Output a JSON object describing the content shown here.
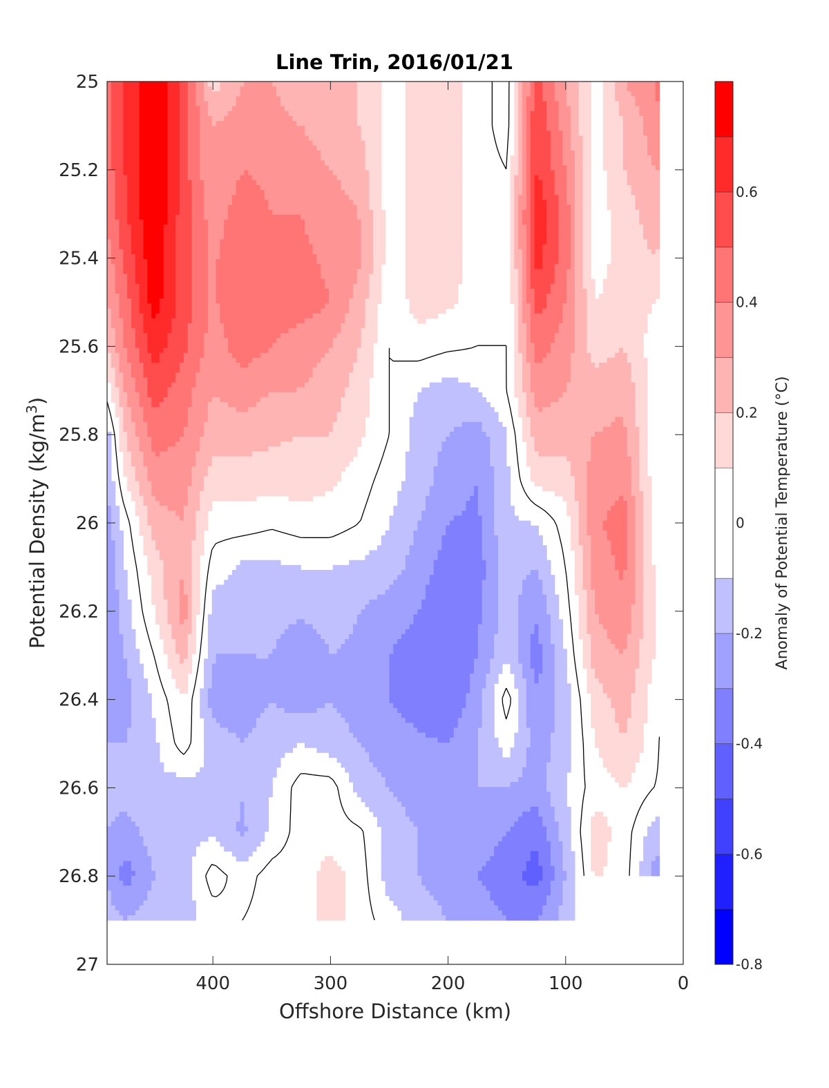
{
  "chart_data": {
    "type": "heatmap",
    "title": "Line Trin, 2016/01/21",
    "xlabel": "Offshore Distance (km)",
    "ylabel_prefix": "Potential Density (kg/m",
    "ylabel_sup": "3",
    "ylabel_suffix": ")",
    "xlim": [
      490,
      0
    ],
    "ylim": [
      25,
      27
    ],
    "x_reversed": true,
    "y_reversed": true,
    "xticks": [
      400,
      300,
      200,
      100,
      0
    ],
    "yticks": [
      25,
      25.2,
      25.4,
      25.6,
      25.8,
      26,
      26.2,
      26.4,
      26.6,
      26.8,
      27
    ],
    "ytick_labels": [
      "25",
      "25.2",
      "25.4",
      "25.6",
      "25.8",
      "26",
      "26.2",
      "26.4",
      "26.6",
      "26.8",
      "27"
    ],
    "colorbar": {
      "label": "Anomaly of Potential Temperature (°C)",
      "min": -0.8,
      "max": 0.8,
      "ticks": [
        -0.8,
        -0.6,
        -0.4,
        -0.2,
        0,
        0.2,
        0.4,
        0.6
      ],
      "tick_labels": [
        "-0.8",
        "-0.6",
        "-0.4",
        "-0.2",
        "0",
        "0.2",
        "0.4",
        "0.6"
      ],
      "levels": [
        -0.8,
        -0.7,
        -0.6,
        -0.5,
        -0.4,
        -0.3,
        -0.2,
        -0.1,
        0.1,
        0.2,
        0.3,
        0.4,
        0.5,
        0.6,
        0.7,
        0.8
      ],
      "colors": [
        "#0000ff",
        "#2020ff",
        "#4040ff",
        "#6060ff",
        "#8080ff",
        "#a0a0ff",
        "#c0c0ff",
        "#ffffff",
        "#ffd8d8",
        "#ffb4b4",
        "#ff9494",
        "#ff7474",
        "#ff4d4d",
        "#ff2a2a",
        "#ff0000"
      ]
    },
    "x": [
      490,
      475,
      450,
      425,
      400,
      375,
      350,
      325,
      300,
      275,
      250,
      225,
      200,
      175,
      150,
      125,
      100,
      75,
      50,
      25,
      10
    ],
    "y": [
      25.0,
      25.1,
      25.2,
      25.3,
      25.4,
      25.5,
      25.6,
      25.7,
      25.8,
      25.9,
      26.0,
      26.1,
      26.2,
      26.3,
      26.4,
      26.5,
      26.6,
      26.7,
      26.8,
      26.9
    ],
    "z": [
      [
        0.45,
        0.6,
        0.82,
        0.55,
        0.15,
        0.3,
        0.3,
        0.2,
        0.2,
        0.2,
        0.05,
        0.15,
        0.15,
        0.05,
        -0.05,
        0.55,
        0.3,
        0.05,
        0.3,
        0.4,
        0.5
      ],
      [
        0.45,
        0.6,
        0.82,
        0.55,
        0.3,
        0.35,
        0.35,
        0.3,
        0.25,
        0.2,
        0.05,
        0.15,
        0.15,
        0.05,
        -0.05,
        0.6,
        0.35,
        0.05,
        0.2,
        0.35,
        0.45
      ],
      [
        0.45,
        0.6,
        0.82,
        0.55,
        0.3,
        0.4,
        0.38,
        0.35,
        0.3,
        0.25,
        0.05,
        0.15,
        0.15,
        0.05,
        0.0,
        0.62,
        0.4,
        0.05,
        0.2,
        0.3,
        0.3
      ],
      [
        0.42,
        0.58,
        0.8,
        0.55,
        0.35,
        0.45,
        0.4,
        0.4,
        0.35,
        0.3,
        0.05,
        0.15,
        0.15,
        0.05,
        0.0,
        0.68,
        0.45,
        0.05,
        0.15,
        0.25,
        0.2
      ],
      [
        0.35,
        0.52,
        0.78,
        0.55,
        0.38,
        0.5,
        0.42,
        0.42,
        0.38,
        0.32,
        0.05,
        0.15,
        0.15,
        0.05,
        0.0,
        0.65,
        0.45,
        0.05,
        0.15,
        0.2,
        0.15
      ],
      [
        0.3,
        0.45,
        0.75,
        0.55,
        0.38,
        0.5,
        0.45,
        0.45,
        0.4,
        0.25,
        0.02,
        0.15,
        0.12,
        0.05,
        0.0,
        0.55,
        0.4,
        0.1,
        0.15,
        0.1,
        0.05
      ],
      [
        0.2,
        0.4,
        0.65,
        0.52,
        0.35,
        0.45,
        0.4,
        0.35,
        0.3,
        0.2,
        0.0,
        0.05,
        0.02,
        0.0,
        0.0,
        0.45,
        0.35,
        0.15,
        0.2,
        0.05,
        0.05
      ],
      [
        0.05,
        0.3,
        0.55,
        0.45,
        0.3,
        0.35,
        0.3,
        0.3,
        0.25,
        0.15,
        0.0,
        -0.1,
        -0.15,
        -0.1,
        0.0,
        0.35,
        0.3,
        0.25,
        0.28,
        0.05,
        0.0
      ],
      [
        -0.15,
        0.2,
        0.45,
        0.4,
        0.25,
        0.25,
        0.22,
        0.2,
        0.2,
        0.12,
        0.0,
        -0.15,
        -0.2,
        -0.25,
        -0.1,
        0.25,
        0.25,
        0.3,
        0.32,
        0.05,
        -0.05
      ],
      [
        -0.2,
        0.1,
        0.35,
        0.35,
        0.15,
        0.15,
        0.15,
        0.15,
        0.12,
        0.05,
        -0.05,
        -0.15,
        -0.25,
        -0.3,
        -0.12,
        0.15,
        0.15,
        0.35,
        0.38,
        0.05,
        -0.1
      ],
      [
        -0.25,
        -0.05,
        0.25,
        0.3,
        0.05,
        0.05,
        0.02,
        0.05,
        0.05,
        0.0,
        -0.1,
        -0.2,
        -0.3,
        -0.32,
        -0.12,
        -0.1,
        0.05,
        0.38,
        0.45,
        0.05,
        -0.1
      ],
      [
        -0.3,
        -0.1,
        0.15,
        0.3,
        -0.05,
        -0.12,
        -0.12,
        -0.1,
        -0.1,
        -0.12,
        -0.15,
        -0.25,
        -0.35,
        -0.35,
        -0.15,
        -0.2,
        0.0,
        0.35,
        0.42,
        0.1,
        -0.15
      ],
      [
        -0.3,
        -0.15,
        0.1,
        0.35,
        -0.15,
        -0.15,
        -0.15,
        -0.18,
        -0.15,
        -0.2,
        -0.25,
        -0.3,
        -0.38,
        -0.32,
        -0.15,
        -0.3,
        -0.05,
        0.3,
        0.38,
        0.1,
        -0.1
      ],
      [
        -0.28,
        -0.2,
        0.0,
        0.25,
        -0.2,
        -0.2,
        -0.2,
        -0.3,
        -0.2,
        -0.22,
        -0.3,
        -0.35,
        -0.4,
        -0.3,
        -0.12,
        -0.35,
        -0.1,
        0.25,
        0.3,
        0.1,
        0.0
      ],
      [
        -0.28,
        -0.25,
        -0.08,
        0.1,
        -0.25,
        -0.25,
        -0.2,
        -0.25,
        -0.2,
        -0.25,
        -0.3,
        -0.35,
        -0.38,
        -0.25,
        0.05,
        -0.3,
        -0.15,
        0.15,
        0.25,
        0.05,
        -0.05
      ],
      [
        -0.2,
        -0.2,
        -0.12,
        0.05,
        -0.15,
        -0.2,
        -0.15,
        -0.1,
        -0.15,
        -0.2,
        -0.25,
        -0.28,
        -0.3,
        -0.2,
        -0.05,
        -0.25,
        -0.15,
        0.1,
        0.2,
        0.05,
        -0.12
      ],
      [
        -0.15,
        -0.15,
        -0.12,
        -0.15,
        -0.1,
        -0.2,
        -0.1,
        0.05,
        0.05,
        -0.15,
        -0.2,
        -0.25,
        -0.2,
        -0.2,
        -0.2,
        -0.25,
        -0.1,
        0.05,
        0.1,
        0.0,
        -0.05
      ],
      [
        -0.2,
        -0.25,
        -0.15,
        -0.12,
        -0.12,
        -0.22,
        -0.08,
        0.05,
        0.05,
        0.02,
        -0.15,
        -0.2,
        -0.25,
        -0.25,
        -0.3,
        -0.38,
        -0.15,
        0.15,
        0.05,
        -0.15,
        -0.1
      ],
      [
        -0.2,
        -0.35,
        -0.2,
        -0.15,
        0.05,
        -0.05,
        0.05,
        0.05,
        0.15,
        0.05,
        -0.15,
        -0.2,
        -0.25,
        -0.3,
        -0.35,
        -0.45,
        -0.2,
        0.12,
        0.05,
        -0.25,
        -0.25
      ],
      [
        -0.15,
        -0.2,
        -0.15,
        -0.15,
        -0.05,
        0.0,
        0.05,
        0.05,
        0.15,
        0.05,
        -0.05,
        -0.15,
        -0.2,
        -0.25,
        -0.3,
        -0.3,
        -0.15,
        0.05,
        0.0,
        -0.05,
        -0.05
      ]
    ],
    "y_extent_km": [
      [
        490,
        26.9
      ],
      [
        90,
        26.9
      ],
      [
        85,
        26.8
      ],
      [
        30,
        26.8
      ]
    ]
  }
}
